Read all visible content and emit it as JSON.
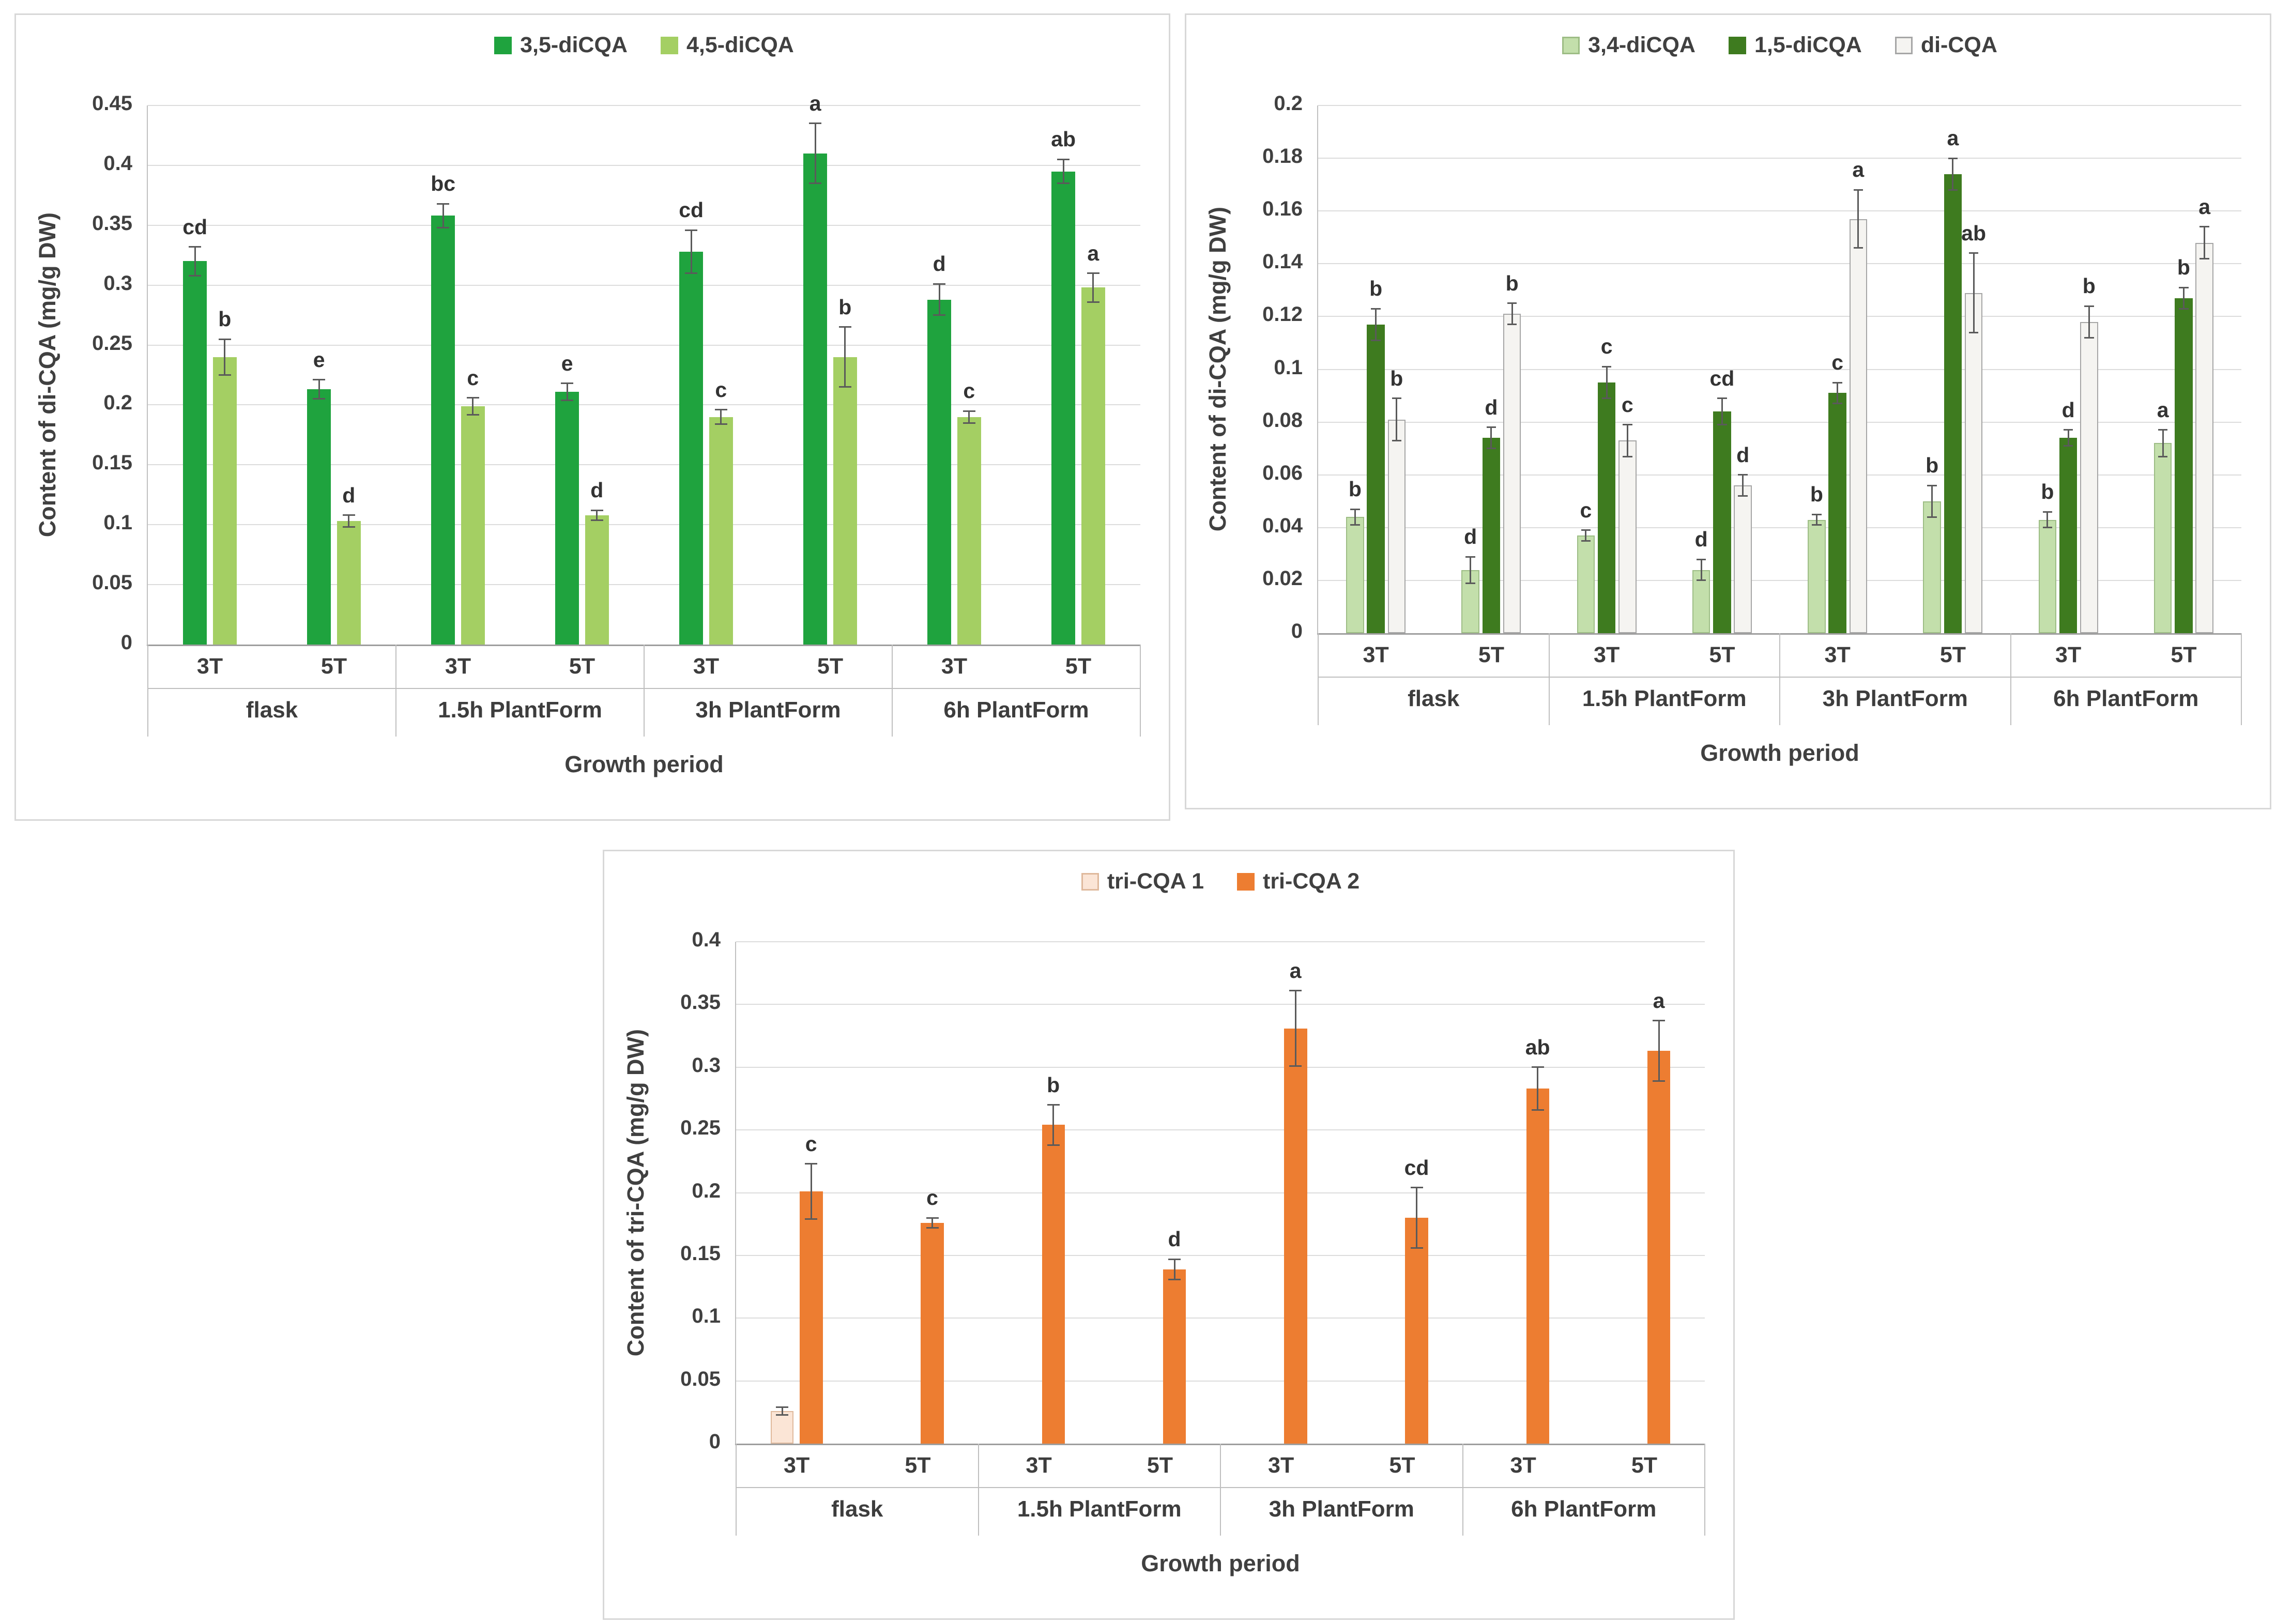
{
  "page": {
    "background": "#ffffff"
  },
  "chart_data": [
    {
      "name": "content-of-di-cqa-35-45",
      "type": "bar",
      "xlabel": "Growth period",
      "ylabel": "Content of di-CQA (mg/g DW)",
      "ylim": [
        0,
        0.45
      ],
      "ystep": 0.05,
      "grid": true,
      "legend_position": "top-center",
      "error_bars": true,
      "groups": [
        "flask",
        "1.5h PlantForm",
        "3h PlantForm",
        "6h PlantForm"
      ],
      "subgroups": [
        "3T",
        "5T"
      ],
      "bar_frac": 0.19,
      "gap_frac": 0.05,
      "series": [
        {
          "name": "3,5-diCQA",
          "color": "#1fa33e",
          "border": "",
          "values": [
            0.32,
            0.213,
            0.358,
            0.211,
            0.328,
            0.41,
            0.288,
            0.395
          ],
          "errors": [
            0.012,
            0.008,
            0.01,
            0.007,
            0.018,
            0.025,
            0.013,
            0.01
          ],
          "letters": [
            "cd",
            "e",
            "bc",
            "e",
            "cd",
            "a",
            "d",
            "ab"
          ]
        },
        {
          "name": "4,5-diCQA",
          "color": "#a4cf63",
          "border": "",
          "values": [
            0.24,
            0.103,
            0.199,
            0.108,
            0.19,
            0.24,
            0.19,
            0.298
          ],
          "errors": [
            0.015,
            0.005,
            0.007,
            0.004,
            0.006,
            0.025,
            0.005,
            0.012
          ],
          "letters": [
            "b",
            "d",
            "c",
            "d",
            "c",
            "b",
            "c",
            "a"
          ]
        }
      ]
    },
    {
      "name": "content-of-di-cqa-34-15-dicqa",
      "type": "bar",
      "xlabel": "Growth period",
      "ylabel": "Content of di-CQA (mg/g DW)",
      "ylim": [
        0,
        0.2
      ],
      "ystep": 0.02,
      "grid": true,
      "legend_position": "top-center",
      "error_bars": true,
      "groups": [
        "flask",
        "1.5h PlantForm",
        "3h PlantForm",
        "6h PlantForm"
      ],
      "subgroups": [
        "3T",
        "5T"
      ],
      "bar_frac": 0.155,
      "gap_frac": 0.025,
      "series": [
        {
          "name": "3,4-diCQA",
          "color": "#c3dfab",
          "border": "#9dbd85",
          "values": [
            0.044,
            0.024,
            0.037,
            0.024,
            0.043,
            0.05,
            0.043,
            0.072
          ],
          "errors": [
            0.003,
            0.005,
            0.002,
            0.004,
            0.002,
            0.006,
            0.003,
            0.005
          ],
          "letters": [
            "b",
            "d",
            "c",
            "d",
            "b",
            "b",
            "b",
            "a"
          ]
        },
        {
          "name": "1,5-diCQA",
          "color": "#3e7b1f",
          "border": "",
          "values": [
            0.117,
            0.074,
            0.095,
            0.084,
            0.091,
            0.174,
            0.074,
            0.127
          ],
          "errors": [
            0.006,
            0.004,
            0.006,
            0.005,
            0.004,
            0.006,
            0.003,
            0.004
          ],
          "letters": [
            "b",
            "d",
            "c",
            "cd",
            "c",
            "a",
            "d",
            "b"
          ]
        },
        {
          "name": "di-CQA",
          "color": "#f5f4f1",
          "border": "#a6a6a6",
          "values": [
            0.081,
            0.121,
            0.073,
            0.056,
            0.157,
            0.129,
            0.118,
            0.148
          ],
          "errors": [
            0.008,
            0.004,
            0.006,
            0.004,
            0.011,
            0.015,
            0.006,
            0.006
          ],
          "letters": [
            "b",
            "b",
            "c",
            "d",
            "a",
            "ab",
            "b",
            "a"
          ]
        }
      ]
    },
    {
      "name": "content-of-tri-cqa",
      "type": "bar",
      "xlabel": "Growth period",
      "ylabel": "Content of tri-CQA (mg/g DW)",
      "ylim": [
        0,
        0.4
      ],
      "ystep": 0.05,
      "grid": true,
      "legend_position": "top-center",
      "error_bars": true,
      "groups": [
        "flask",
        "1.5h PlantForm",
        "3h PlantForm",
        "6h PlantForm"
      ],
      "subgroups": [
        "3T",
        "5T"
      ],
      "bar_frac": 0.19,
      "gap_frac": 0.05,
      "series": [
        {
          "name": "tri-CQA 1",
          "color": "#fbe5d6",
          "border": "#dfb99c",
          "values": [
            0.026,
            0,
            0,
            0,
            0,
            0,
            0,
            0
          ],
          "errors": [
            0.003,
            0,
            0,
            0,
            0,
            0,
            0,
            0
          ],
          "letters": [
            "",
            "",
            "",
            "",
            "",
            "",
            "",
            ""
          ]
        },
        {
          "name": "tri-CQA 2",
          "color": "#ed7d31",
          "border": "",
          "values": [
            0.201,
            0.176,
            0.254,
            0.139,
            0.331,
            0.18,
            0.283,
            0.313
          ],
          "errors": [
            0.022,
            0.004,
            0.016,
            0.008,
            0.03,
            0.024,
            0.017,
            0.024
          ],
          "letters": [
            "c",
            "c",
            "b",
            "d",
            "a",
            "cd",
            "ab",
            "a"
          ]
        }
      ]
    }
  ]
}
